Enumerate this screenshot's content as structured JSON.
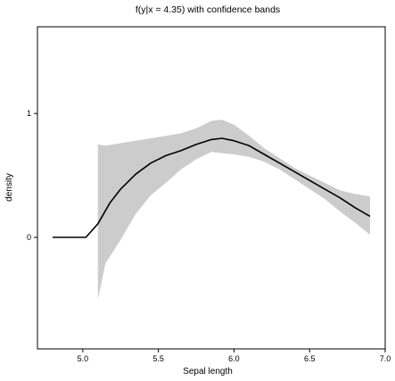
{
  "chart_data": {
    "type": "line",
    "title": "f(y|x = 4.35) with confidence bands",
    "xlabel": "Sepal length",
    "ylabel": "density",
    "xlim": [
      4.7,
      7.0
    ],
    "ylim": [
      -0.9,
      1.7
    ],
    "xticks": [
      "5.0",
      "5.5",
      "6.0",
      "6.5",
      "7.0"
    ],
    "yticks": [
      "0",
      "1"
    ],
    "grid": false,
    "legend": "none",
    "colors": {
      "line": "#000000",
      "band": "#cccccc",
      "frame": "#000000"
    },
    "series": [
      {
        "role": "estimate",
        "x": [
          4.8,
          5.02,
          5.1,
          5.18,
          5.25,
          5.35,
          5.45,
          5.55,
          5.65,
          5.75,
          5.85,
          5.92,
          6.0,
          6.1,
          6.2,
          6.3,
          6.4,
          6.5,
          6.6,
          6.7,
          6.8,
          6.9
        ],
        "y": [
          0.0,
          0.0,
          0.11,
          0.28,
          0.39,
          0.51,
          0.6,
          0.66,
          0.7,
          0.75,
          0.79,
          0.8,
          0.78,
          0.74,
          0.67,
          0.6,
          0.53,
          0.46,
          0.39,
          0.32,
          0.24,
          0.17
        ]
      },
      {
        "role": "confidence-band",
        "x": [
          5.1,
          5.15,
          5.25,
          5.35,
          5.45,
          5.55,
          5.65,
          5.75,
          5.85,
          5.92,
          6.0,
          6.1,
          6.2,
          6.3,
          6.4,
          6.5,
          6.6,
          6.7,
          6.8,
          6.9
        ],
        "upper": [
          0.75,
          0.74,
          0.76,
          0.78,
          0.8,
          0.82,
          0.84,
          0.88,
          0.94,
          0.95,
          0.91,
          0.82,
          0.72,
          0.64,
          0.56,
          0.5,
          0.44,
          0.38,
          0.35,
          0.33
        ],
        "lower": [
          -0.5,
          -0.21,
          -0.02,
          0.19,
          0.34,
          0.44,
          0.55,
          0.63,
          0.69,
          0.68,
          0.67,
          0.65,
          0.61,
          0.55,
          0.47,
          0.39,
          0.31,
          0.21,
          0.12,
          0.02
        ]
      }
    ]
  }
}
